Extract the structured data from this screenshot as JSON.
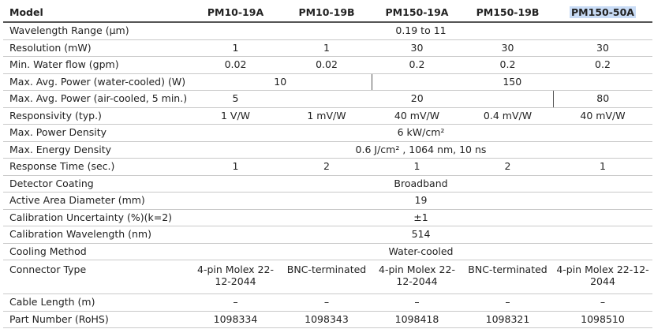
{
  "header": {
    "label": "Model",
    "models": [
      "PM10-19A",
      "PM10-19B",
      "PM150-19A",
      "PM150-19B",
      "PM150-50A"
    ]
  },
  "rows": {
    "wavelength": {
      "label": "Wavelength Range (µm)",
      "all": "0.19 to 11"
    },
    "resolution": {
      "label": "Resolution (mW)",
      "values": [
        "1",
        "1",
        "30",
        "30",
        "30"
      ]
    },
    "water_flow": {
      "label": "Min. Water flow (gpm)",
      "values": [
        "0.02",
        "0.02",
        "0.2",
        "0.2",
        "0.2"
      ]
    },
    "power_water": {
      "label": "Max. Avg. Power (water-cooled) (W)",
      "pm10": "10",
      "pm150": "150"
    },
    "power_air": {
      "label": "Max. Avg. Power (air-cooled, 5 min.) (W)",
      "pm10": "5",
      "mid": "20",
      "pm150_50a": "80"
    },
    "responsivity": {
      "label": "Responsivity (typ.)",
      "values": [
        "1 V/W",
        "1 mV/W",
        "40 mV/W",
        "0.4 mV/W",
        "40 mV/W"
      ]
    },
    "power_density": {
      "label": "Max. Power Density",
      "all": "6 kW/cm²"
    },
    "energy_density": {
      "label": "Max. Energy Density",
      "all": "0.6 J/cm² , 1064 nm, 10 ns"
    },
    "response_time": {
      "label": "Response Time (sec.)",
      "values": [
        "1",
        "2",
        "1",
        "2",
        "1"
      ]
    },
    "coating": {
      "label": "Detector Coating",
      "all": "Broadband"
    },
    "area": {
      "label": "Active Area Diameter (mm)",
      "all": "19"
    },
    "uncertainty": {
      "label": "Calibration Uncertainty (%)(k=2)",
      "all": "±1"
    },
    "cal_wavelength": {
      "label": "Calibration Wavelength (nm)",
      "all": "514"
    },
    "cooling": {
      "label": "Cooling Method",
      "all": "Water-cooled"
    },
    "connector": {
      "label": "Connector Type",
      "values": [
        "4-pin Molex 22-12-2044",
        "BNC-terminated",
        "4-pin Molex 22-12-2044",
        "BNC-terminated",
        "4-pin Molex 22-12-2044"
      ]
    },
    "cable": {
      "label": "Cable Length (m)",
      "values": [
        "–",
        "–",
        "–",
        "–",
        "–"
      ]
    },
    "part": {
      "label": "Part Number (RoHS)",
      "values": [
        "1098334",
        "1098343",
        "1098418",
        "1098321",
        "1098510"
      ]
    }
  }
}
